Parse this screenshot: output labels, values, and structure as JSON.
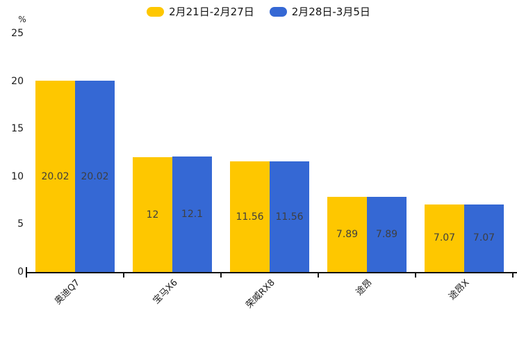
{
  "chart_data": {
    "type": "bar",
    "title": "",
    "ylabel": "%",
    "ylim": [
      0,
      25
    ],
    "y_ticks": [
      0,
      5,
      10,
      15,
      20,
      25
    ],
    "grid": false,
    "legend_position": "top",
    "value_label_color": "#3F3F3F",
    "axis_color": "#141414",
    "categories": [
      "奥迪Q7",
      "宝马X6",
      "荣威RX8",
      "途昂",
      "途昂X"
    ],
    "series": [
      {
        "name": "2月21日-2月27日",
        "color": "#FEC700",
        "values": [
          20.02,
          12,
          11.56,
          7.89,
          7.07
        ],
        "labels": [
          "20.02",
          "12",
          "11.56",
          "7.89",
          "7.07"
        ]
      },
      {
        "name": "2月28日-3月5日",
        "color": "#3568D4",
        "values": [
          20.02,
          12.1,
          11.56,
          7.89,
          7.07
        ],
        "labels": [
          "20.02",
          "12.1",
          "11.56",
          "7.89",
          "7.07"
        ]
      }
    ]
  }
}
